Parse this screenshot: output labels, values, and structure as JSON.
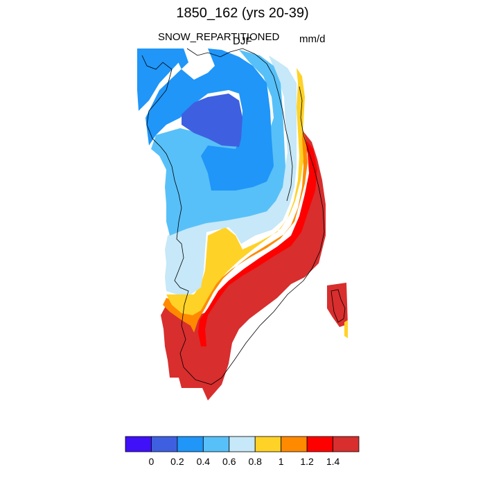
{
  "title": "1850_162 (yrs 20-39)",
  "variable": "SNOW_REPARTITIONED",
  "season": "DJF",
  "units": "mm/d",
  "colorbar": {
    "colors": [
      "#4010f8",
      "#3e60e0",
      "#1f96f8",
      "#58c0f8",
      "#c6e8f8",
      "#ffd228",
      "#ff8a00",
      "#ff0000",
      "#d82e2e"
    ],
    "tick_labels": [
      "0",
      "0.2",
      "0.4",
      "0.6",
      "0.8",
      "1",
      "1.2",
      "1.4"
    ]
  },
  "chart_data": {
    "type": "heatmap",
    "title": "1850_162 (yrs 20-39)",
    "variable": "SNOW_REPARTITIONED",
    "season": "DJF",
    "units": "mm/d",
    "levels": [
      0,
      0.2,
      0.4,
      0.6,
      0.8,
      1,
      1.2,
      1.4
    ],
    "region": "Greenland",
    "value_pattern": "lowest (0.2-0.4) over north-central interior; 0.4-0.8 across northern and western interior; 0.8-1.2 along southwest and east coast transition; >1.4 across southeast and south coast"
  }
}
